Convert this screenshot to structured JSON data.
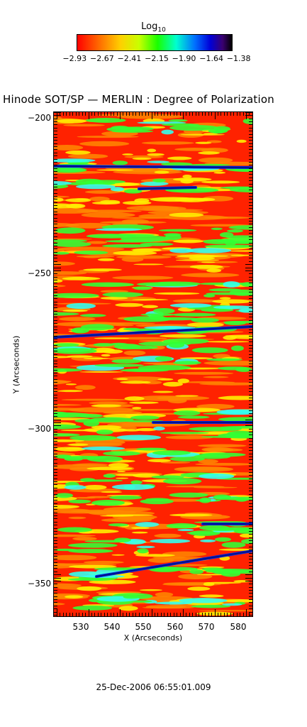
{
  "colorbar": {
    "title": "Log",
    "title_subscript": "10",
    "tick_labels": [
      "−2.93",
      "−2.67",
      "−2.41",
      "−2.15",
      "−1.90",
      "−1.64",
      "−1.38"
    ],
    "range": [
      -2.93,
      -1.38
    ]
  },
  "plot": {
    "title": "Hinode SOT/SP — MERLIN : Degree of Polarization",
    "x_label": "X (Arcseconds)",
    "y_label": "Y (Arcseconds)",
    "x_range": [
      522,
      585
    ],
    "y_range": [
      -361,
      -198
    ],
    "x_tick_labels": [
      "530",
      "540",
      "550",
      "560",
      "570",
      "580"
    ],
    "y_tick_labels": [
      "−200",
      "−250",
      "−300",
      "−350"
    ]
  },
  "timestamp": "25-Dec-2006 06:55:01.009",
  "colors": {
    "red": "#ff2200",
    "orange": "#ff8800",
    "yellow": "#ffee00",
    "green": "#33ff33",
    "cyan": "#33ffee",
    "blue": "#0022dd",
    "navy": "#001070"
  }
}
